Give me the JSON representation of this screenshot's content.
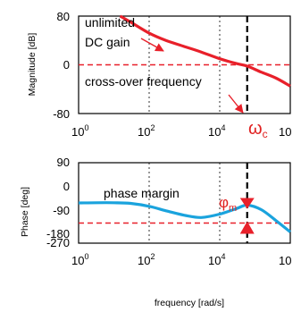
{
  "colors": {
    "magnitude_curve": "#e8202a",
    "phase_curve": "#1aa3dd",
    "reference_line": "#e8202a",
    "crossover_line": "#000000",
    "grid": "#000000"
  },
  "chart_data": [
    {
      "type": "line",
      "scale_x": "log10",
      "xlim": [
        1,
        1000000
      ],
      "ylim": [
        -80,
        80
      ],
      "ylabel": "Magnitude [dB]",
      "xticks": [
        {
          "base": "10",
          "exp": "0"
        },
        {
          "base": "10",
          "exp": "2"
        },
        {
          "base": "10",
          "exp": "4"
        },
        {
          "base": "10",
          "exp": ""
        }
      ],
      "yticks": [
        "80",
        "0",
        "-80"
      ],
      "grid": "dotted vertical at decades 10^2 and 10^4",
      "reference_line": {
        "y": 0,
        "style": "dashed",
        "color": "red"
      },
      "crossover_marker": {
        "x": 60000,
        "style": "dashed",
        "color": "black",
        "label_main": "ω",
        "label_sub": "c"
      },
      "series": [
        {
          "x": [
            15,
            30,
            100,
            300,
            1000,
            3000,
            10000,
            30000,
            60000,
            150000,
            400000,
            1000000
          ],
          "y": [
            80,
            70,
            52,
            40,
            30,
            21,
            10,
            2,
            -2,
            -12,
            -22,
            -35
          ]
        }
      ],
      "annotations": [
        {
          "text_lines": [
            "unlimited",
            "DC gain"
          ]
        },
        {
          "text": "cross-over frequency"
        }
      ]
    },
    {
      "type": "line",
      "scale_x": "log10",
      "xlim": [
        1,
        1000000
      ],
      "ylim": [
        -270,
        90
      ],
      "ylabel": "Phase [deg]",
      "xlabel": "frequency [rad/s]",
      "xticks": [
        {
          "base": "10",
          "exp": "0"
        },
        {
          "base": "10",
          "exp": "2"
        },
        {
          "base": "10",
          "exp": "4"
        },
        {
          "base": "10",
          "exp": ""
        }
      ],
      "yticks": [
        "90",
        "0",
        "-90",
        "-180",
        "-270"
      ],
      "grid": "dotted vertical at decades 10^2 and 10^4",
      "reference_line": {
        "y": -180,
        "style": "dashed",
        "color": "red"
      },
      "crossover_marker": {
        "x": 60000,
        "style": "dashed",
        "color": "black"
      },
      "phase_margin_marker": {
        "x": 60000,
        "from_y": -180,
        "to_y": -100,
        "label_main": "φ",
        "label_sub": "m"
      },
      "series": [
        {
          "x": [
            1,
            3,
            10,
            30,
            100,
            300,
            1000,
            3000,
            10000,
            30000,
            60000,
            150000,
            400000,
            1000000
          ],
          "y": [
            -90,
            -89,
            -89,
            -92,
            -105,
            -125,
            -145,
            -155,
            -140,
            -115,
            -100,
            -120,
            -170,
            -220
          ]
        }
      ],
      "annotations": [
        {
          "text": "phase margin"
        }
      ]
    }
  ]
}
